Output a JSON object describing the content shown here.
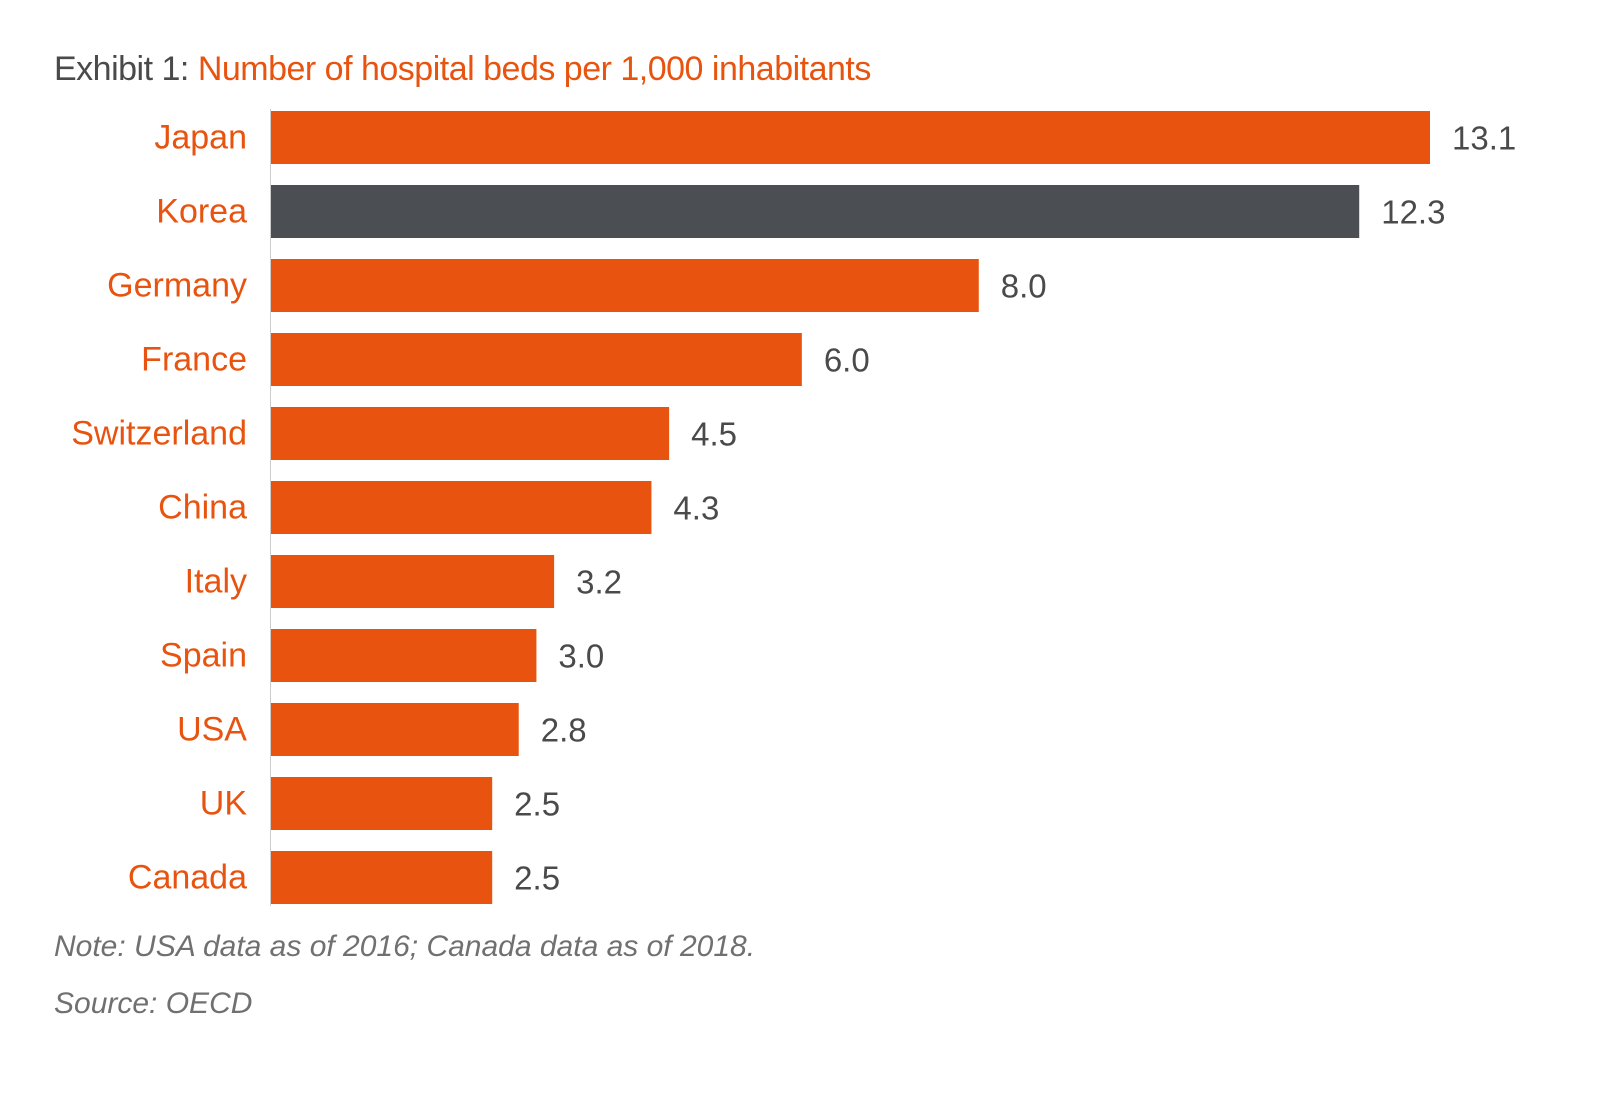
{
  "title": {
    "prefix": "Exhibit 1: ",
    "main": "Number of hospital beds per 1,000 inhabitants"
  },
  "note": "Note: USA data as of 2016; Canada data as of 2018.",
  "source": "Source: OECD",
  "colors": {
    "default_bar": "#e8540f",
    "highlight_bar": "#4b4e52",
    "category_label": "#e8540f",
    "value_label": "#4a4a4a",
    "axis_line": "#cccccc"
  },
  "chart_data": {
    "type": "bar",
    "orientation": "horizontal",
    "title": "Number of hospital beds per 1,000 inhabitants",
    "categories": [
      "Japan",
      "Korea",
      "Germany",
      "France",
      "Switzerland",
      "China",
      "Italy",
      "Spain",
      "USA",
      "UK",
      "Canada"
    ],
    "values": [
      13.1,
      12.3,
      8.0,
      6.0,
      4.5,
      4.3,
      3.2,
      3.0,
      2.8,
      2.5,
      2.5
    ],
    "value_labels": [
      "13.1",
      "12.3",
      "8.0",
      "6.0",
      "4.5",
      "4.3",
      "3.2",
      "3.0",
      "2.8",
      "2.5",
      "2.5"
    ],
    "highlight": "Korea",
    "xlim": [
      0,
      13.1
    ],
    "grid": false,
    "legend": "none"
  }
}
